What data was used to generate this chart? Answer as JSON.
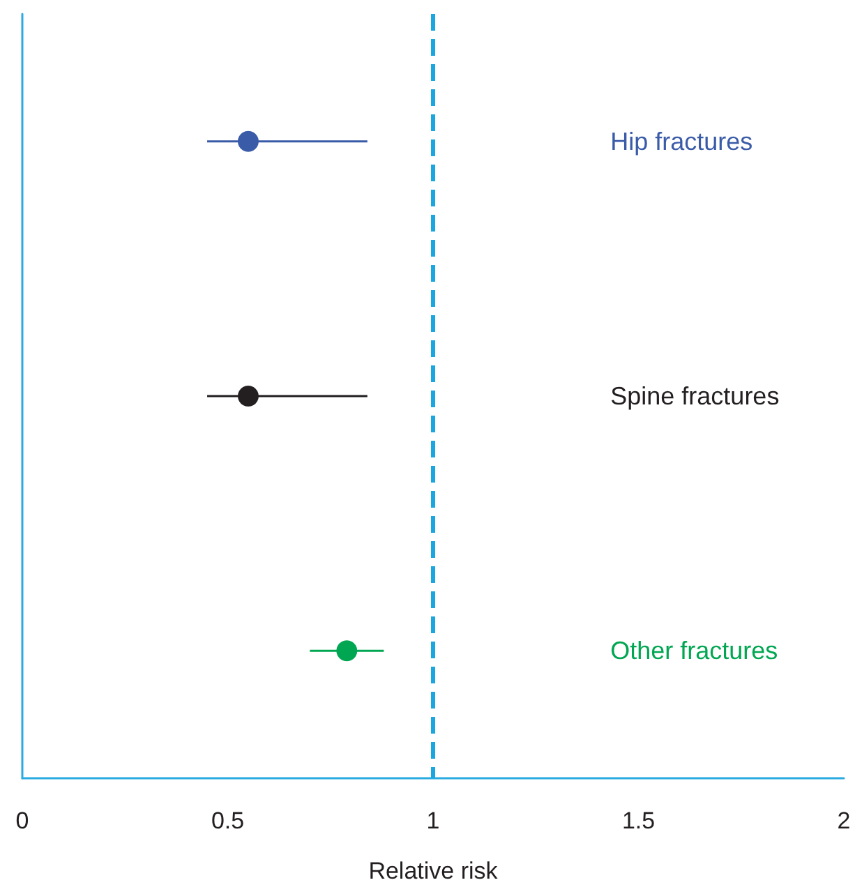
{
  "chart_data": {
    "type": "scatter",
    "orientation": "horizontal",
    "xlabel": "Relative risk",
    "categories": [
      null,
      null,
      null
    ],
    "series": [
      {
        "name": "Hip fractures",
        "color": "#3a5ba8",
        "values": [
          0.55,
          null,
          null
        ],
        "errors": [
          [
            0.45,
            0.84
          ],
          null,
          null
        ]
      },
      {
        "name": "Spine fractures",
        "color": "#231f20",
        "values": [
          null,
          0.55,
          null
        ],
        "errors": [
          null,
          [
            0.45,
            0.84
          ],
          null
        ]
      },
      {
        "name": "Other fractures",
        "color": "#00a651",
        "values": [
          null,
          null,
          0.79
        ],
        "errors": [
          null,
          null,
          [
            0.7,
            0.88
          ]
        ]
      }
    ],
    "xlim": [
      0,
      2
    ],
    "xticks": [
      0,
      0.5,
      1,
      1.5,
      2
    ],
    "ref_lines": [
      {
        "axis": "x",
        "value": 1,
        "color": "#1aa7e0",
        "line_style": "dashed"
      }
    ],
    "marker": "circle",
    "grid": false,
    "legend": false
  }
}
